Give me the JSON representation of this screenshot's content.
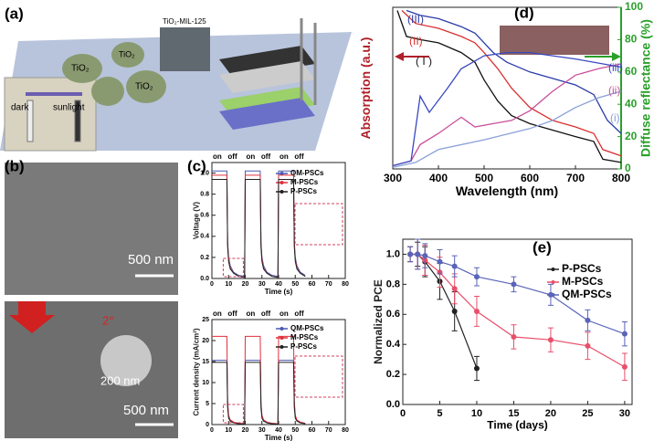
{
  "labels": {
    "a": "(a)",
    "b": "(b)",
    "c": "(c)",
    "d": "(d)",
    "e": "(e)",
    "dark": "dark",
    "sunlight": "sunlight",
    "tio2": "TiO₂",
    "mof": "TiO₂-MIL-125",
    "scale_b1": "500 nm",
    "scale_b2": "200 nm",
    "angle": "2°",
    "scale_b3": "500 nm",
    "on": "on",
    "off": "off"
  },
  "chart_data": [
    {
      "type": "line",
      "xlabel": "Time (s)",
      "ylabel": "Voltage (V)",
      "x": [
        0,
        9,
        9.4,
        10,
        11,
        13,
        16,
        19.6,
        20,
        29,
        29.4,
        30,
        31,
        33,
        36,
        39.6,
        40,
        49,
        49.4,
        50,
        51,
        53,
        56
      ],
      "xlim": [
        0,
        80
      ],
      "xticks": [
        0,
        10,
        20,
        30,
        40,
        50,
        60,
        70,
        80
      ],
      "ylim": [
        0,
        1.1
      ],
      "yticks": [
        {
          "value": 0,
          "label": "0.0"
        },
        {
          "value": 0.2,
          "label": "0.2"
        },
        {
          "value": 0.4,
          "label": "0.4"
        },
        {
          "value": 0.6,
          "label": "0.6"
        },
        {
          "value": 0.8,
          "label": "0.8"
        },
        {
          "value": 1.0,
          "label": "1.0"
        }
      ],
      "legend": "upper right",
      "series": [
        {
          "name": "QM-PSCs",
          "color": "#4a5bb0",
          "values": [
            1.02,
            1.02,
            0.35,
            0.2,
            0.12,
            0.06,
            0.03,
            0.02,
            1.02,
            1.02,
            0.35,
            0.2,
            0.12,
            0.06,
            0.03,
            0.02,
            1.02,
            1.02,
            0.35,
            0.2,
            0.12,
            0.06,
            0.03
          ]
        },
        {
          "name": "M-PSCs",
          "color": "#e0303a",
          "values": [
            0.98,
            0.98,
            0.33,
            0.18,
            0.1,
            0.05,
            0.02,
            0.01,
            0.98,
            0.98,
            0.33,
            0.18,
            0.1,
            0.05,
            0.02,
            0.01,
            0.98,
            0.98,
            0.33,
            0.18,
            0.1,
            0.05,
            0.02
          ]
        },
        {
          "name": "P-PSCs",
          "color": "#222222",
          "values": [
            0.94,
            0.94,
            0.3,
            0.16,
            0.09,
            0.05,
            0.02,
            0.01,
            0.94,
            0.94,
            0.3,
            0.16,
            0.09,
            0.05,
            0.02,
            0.01,
            0.94,
            0.94,
            0.3,
            0.16,
            0.09,
            0.05,
            0.02
          ]
        }
      ]
    },
    {
      "type": "line",
      "xlabel": "Time (s)",
      "ylabel": "Current density (mA/cm²)",
      "x": [
        0,
        9,
        9.4,
        10,
        11,
        13,
        16,
        19.6,
        20,
        29,
        29.4,
        30,
        31,
        33,
        36,
        39.6,
        40,
        49,
        49.4,
        50,
        51,
        53,
        56
      ],
      "xlim": [
        0,
        80
      ],
      "xticks": [
        0,
        10,
        20,
        30,
        40,
        50,
        60,
        70,
        80
      ],
      "ylim": [
        0,
        25
      ],
      "yticks": [
        0,
        5,
        10,
        15,
        20,
        25
      ],
      "legend": "upper right",
      "series": [
        {
          "name": "QM-PSCs",
          "color": "#4a5bb0",
          "values": [
            15.3,
            15.3,
            5,
            2,
            1,
            0.5,
            0.3,
            0.2,
            15.3,
            15.3,
            5,
            2,
            1,
            0.5,
            0.3,
            0.2,
            15.3,
            15.3,
            5,
            2,
            1,
            0.5,
            0.3
          ]
        },
        {
          "name": "M-PSCs",
          "color": "#e0303a",
          "values": [
            21,
            21,
            5.5,
            2.2,
            1.1,
            0.6,
            0.3,
            0.2,
            21,
            21,
            5.5,
            2.2,
            1.1,
            0.6,
            0.3,
            0.2,
            21,
            21,
            5.5,
            2.2,
            1.1,
            0.6,
            0.3
          ]
        },
        {
          "name": "P-PSCs",
          "color": "#222222",
          "values": [
            14.8,
            14.8,
            4,
            1.5,
            0.8,
            0.4,
            0.2,
            0.1,
            14.8,
            14.8,
            4,
            1.5,
            0.8,
            0.4,
            0.2,
            0.1,
            14.8,
            14.8,
            4,
            1.5,
            0.8,
            0.4,
            0.2
          ]
        }
      ]
    },
    {
      "type": "line",
      "xlabel": "Wavelength (nm)",
      "ylabel": "Absorption (a.u.)",
      "y2label": "Diffuse reflectance (%)",
      "ylabel_color": "#b0202a",
      "y2_color": "#2aa02a",
      "xlim": [
        300,
        800
      ],
      "xticks": [
        300,
        400,
        500,
        600,
        700,
        800
      ],
      "ylim": [
        0,
        1
      ],
      "y2lim": [
        0,
        100
      ],
      "y2ticks": [
        0,
        20,
        40,
        60,
        80,
        100
      ],
      "series": [
        {
          "name": "( I )",
          "color": "#111111",
          "x": [
            310,
            330,
            360,
            400,
            450,
            480,
            500,
            530,
            560,
            600,
            650,
            700,
            740,
            760,
            800
          ],
          "values": [
            0.98,
            0.82,
            0.8,
            0.78,
            0.72,
            0.66,
            0.55,
            0.42,
            0.33,
            0.28,
            0.24,
            0.2,
            0.17,
            0.06,
            0.04
          ]
        },
        {
          "name": "(II)",
          "color": "#d9302f",
          "x": [
            320,
            350,
            400,
            450,
            480,
            500,
            530,
            560,
            600,
            650,
            700,
            740,
            760,
            800
          ],
          "values": [
            0.98,
            0.9,
            0.87,
            0.82,
            0.78,
            0.72,
            0.62,
            0.5,
            0.38,
            0.3,
            0.26,
            0.22,
            0.12,
            0.08
          ]
        },
        {
          "name": "(III)",
          "color": "#2b3ba8",
          "x": [
            330,
            360,
            400,
            450,
            480,
            500,
            520,
            550,
            600,
            650,
            700,
            740,
            770,
            800
          ],
          "values": [
            0.98,
            0.95,
            0.93,
            0.88,
            0.84,
            0.78,
            0.72,
            0.66,
            0.6,
            0.56,
            0.52,
            0.46,
            0.3,
            0.22
          ]
        },
        {
          "name": "(i)",
          "color": "#8aa0d8",
          "axis": "y2",
          "x": [
            300,
            350,
            400,
            500,
            600,
            650,
            700,
            750,
            800
          ],
          "values": [
            1,
            4,
            12,
            18,
            25,
            30,
            38,
            44,
            48
          ]
        },
        {
          "name": "(ii)",
          "color": "#c8509a",
          "axis": "y2",
          "x": [
            300,
            340,
            360,
            400,
            450,
            480,
            520,
            560,
            600,
            650,
            700,
            750,
            800
          ],
          "values": [
            2,
            5,
            15,
            22,
            32,
            26,
            28,
            30,
            36,
            48,
            58,
            62,
            65
          ]
        },
        {
          "name": "(iii)",
          "color": "#3848c0",
          "axis": "y2",
          "x": [
            300,
            340,
            360,
            380,
            420,
            450,
            500,
            550,
            600,
            700,
            800
          ],
          "values": [
            2,
            5,
            45,
            35,
            50,
            62,
            70,
            72,
            72,
            68,
            63
          ]
        }
      ]
    },
    {
      "type": "errorbar",
      "xlabel": "Time (days)",
      "ylabel": "Normalized PCE",
      "xlim": [
        0,
        31
      ],
      "xticks": [
        0,
        5,
        10,
        15,
        20,
        25,
        30
      ],
      "ylim": [
        0,
        1.1
      ],
      "yticks": [
        {
          "value": 0,
          "label": "0.0"
        },
        {
          "value": 0.2,
          "label": "0.2"
        },
        {
          "value": 0.4,
          "label": "0.4"
        },
        {
          "value": 0.6,
          "label": "0.6"
        },
        {
          "value": 0.8,
          "label": "0.8"
        },
        {
          "value": 1.0,
          "label": "1.0"
        }
      ],
      "legend": "upper right",
      "series": [
        {
          "name": "P-PSCs",
          "color": "#222222",
          "x": [
            1,
            2,
            3,
            5,
            7,
            10
          ],
          "values": [
            1.0,
            1.0,
            0.95,
            0.82,
            0.62,
            0.24
          ],
          "errors": [
            0.05,
            0.08,
            0.1,
            0.12,
            0.13,
            0.08
          ]
        },
        {
          "name": "M-PSCs",
          "color": "#e8506a",
          "x": [
            1,
            2,
            3,
            5,
            7,
            10,
            15,
            20,
            25,
            30
          ],
          "values": [
            1.0,
            1.0,
            0.96,
            0.88,
            0.77,
            0.62,
            0.45,
            0.43,
            0.39,
            0.25
          ],
          "errors": [
            0.05,
            0.1,
            0.1,
            0.1,
            0.1,
            0.1,
            0.08,
            0.08,
            0.09,
            0.09
          ]
        },
        {
          "name": "QM-PSCs",
          "color": "#5a64b8",
          "x": [
            1,
            2,
            3,
            5,
            7,
            10,
            15,
            20,
            25,
            30
          ],
          "values": [
            1.0,
            1.0,
            0.99,
            0.95,
            0.92,
            0.85,
            0.8,
            0.73,
            0.56,
            0.47
          ],
          "errors": [
            0.05,
            0.1,
            0.08,
            0.08,
            0.07,
            0.06,
            0.05,
            0.07,
            0.07,
            0.08
          ]
        }
      ]
    }
  ]
}
